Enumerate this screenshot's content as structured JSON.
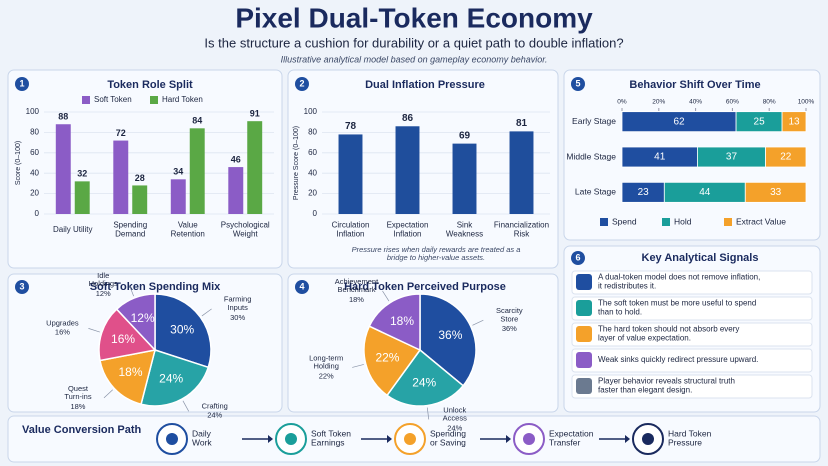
{
  "header": {
    "title": "Pixel Dual-Token Economy",
    "subtitle": "Is the structure a cushion for durability or a quiet path to double inflation?",
    "note": "Illustrative analytical model based on gameplay economy behavior."
  },
  "chart_data": [
    {
      "type": "grouped_bar",
      "number": "1",
      "title": "Token Role Split",
      "ylabel": "Score (0–100)",
      "categories": [
        "Daily Utility",
        "Spending\nDemand",
        "Value\nRetention",
        "Psychological\nWeight"
      ],
      "series": [
        {
          "name": "Soft Token",
          "color": "#8b5cc6",
          "values": [
            88,
            72,
            34,
            46
          ]
        },
        {
          "name": "Hard Token",
          "color": "#5aa845",
          "values": [
            32,
            28,
            84,
            91
          ]
        }
      ],
      "ylim": [
        0,
        100
      ],
      "yticks": [
        0,
        20,
        40,
        60,
        80,
        100
      ]
    },
    {
      "type": "bar",
      "number": "2",
      "title": "Dual Inflation Pressure",
      "ylabel": "Pressure Score (0–100)",
      "categories": [
        "Circulation\nInflation",
        "Expectation\nInflation",
        "Sink\nWeakness",
        "Financialization\nRisk"
      ],
      "values": [
        78,
        86,
        69,
        81
      ],
      "color": "#1f4e9c",
      "ylim": [
        0,
        100
      ],
      "yticks": [
        0,
        20,
        40,
        60,
        80,
        100
      ],
      "note": "Pressure rises when daily rewards are treated as a\nbridge to higher-value assets."
    },
    {
      "type": "stacked_hbar",
      "number": "5",
      "title": "Behavior Shift Over Time",
      "categories": [
        "Early Stage",
        "Middle Stage",
        "Late Stage"
      ],
      "series": [
        {
          "name": "Spend",
          "color": "#1f4ea0",
          "values": [
            62,
            41,
            23
          ]
        },
        {
          "name": "Hold",
          "color": "#1a9e9a",
          "values": [
            25,
            37,
            44
          ]
        },
        {
          "name": "Extract Value",
          "color": "#f4a12a",
          "values": [
            13,
            22,
            33
          ]
        }
      ],
      "xlim": [
        0,
        100
      ],
      "xticks": [
        {
          "value": 0,
          "label": "0%"
        },
        {
          "value": 20,
          "label": "20%"
        },
        {
          "value": 40,
          "label": "40%"
        },
        {
          "value": 60,
          "label": "60%"
        },
        {
          "value": 80,
          "label": "80%"
        },
        {
          "value": 100,
          "label": "100%"
        }
      ],
      "legend": "bottom"
    },
    {
      "type": "pie",
      "number": "3",
      "title": "Soft Token Spending Mix",
      "categories": [
        "Farming\nInputs",
        "Crafting",
        "Quest\nTurn-ins",
        "Upgrades",
        "Idle\nHoldings"
      ],
      "values": [
        30,
        24,
        18,
        16,
        12
      ],
      "value_labels": [
        "30%",
        "24%",
        "18%",
        "16%",
        "12%"
      ],
      "colors": [
        "#1f4ea0",
        "#27a3a6",
        "#f4a12a",
        "#e0508a",
        "#8b5cc6"
      ]
    },
    {
      "type": "pie",
      "number": "4",
      "title": "Hard Token Perceived Purpose",
      "categories": [
        "Scarcity\nStore",
        "Unlock\nAccess",
        "Long-term\nHolding",
        "Achievement\nBenchmark"
      ],
      "values": [
        36,
        24,
        22,
        18
      ],
      "value_labels": [
        "36%",
        "24%",
        "22%",
        "18%"
      ],
      "colors": [
        "#1f4ea0",
        "#27a3a6",
        "#f4a12a",
        "#8b5cc6"
      ]
    }
  ],
  "signals": {
    "number": "6",
    "title": "Key Analytical Signals",
    "items": [
      "A dual-token model does not remove inflation,\nit redistributes it.",
      "The soft token must be more useful to spend\nthan to hold.",
      "The hard token should not absorb every\nlayer of value expectation.",
      "Weak sinks quickly redirect pressure upward.",
      "Player behavior reveals structural truth\nfaster than elegant design."
    ]
  },
  "path": {
    "title": "Value Conversion Path",
    "steps": [
      "Daily\nWork",
      "Soft Token\nEarnings",
      "Spending\nor Saving",
      "Expectation\nTransfer",
      "Hard Token\nPressure"
    ]
  }
}
